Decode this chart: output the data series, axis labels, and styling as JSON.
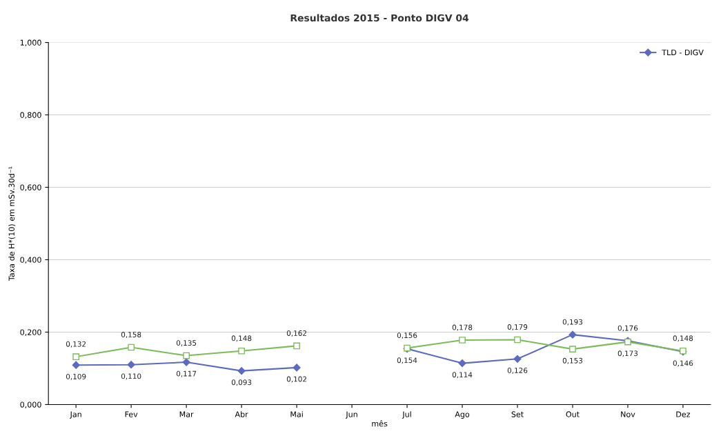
{
  "chart_data": {
    "type": "line",
    "title": "Resultados 2015 - Ponto DIGV 04",
    "xlabel": "mês",
    "ylabel": "Taxa de H*(10) em mSv.30d⁻¹",
    "categories": [
      "Jan",
      "Fev",
      "Mar",
      "Abr",
      "Mai",
      "Jun",
      "Jul",
      "Ago",
      "Set",
      "Out",
      "Nov",
      "Dez"
    ],
    "series": [
      {
        "name": "TLD - DIGV",
        "color": "#5b6cc0",
        "marker": "diamond",
        "values": [
          0.109,
          0.11,
          0.117,
          0.093,
          0.102,
          null,
          0.154,
          0.114,
          0.126,
          0.193,
          0.176,
          0.146
        ],
        "value_labels": [
          "0,109",
          "0,110",
          "0,117",
          "0,093",
          "0,102",
          null,
          "0,154",
          "0,114",
          "0,126",
          "0,193",
          "0,176",
          "0,146"
        ]
      },
      {
        "color": "#7cbc5a",
        "marker": "square",
        "values": [
          0.132,
          0.158,
          0.135,
          0.148,
          0.162,
          null,
          0.156,
          0.178,
          0.179,
          0.153,
          0.173,
          0.148
        ],
        "value_labels": [
          "0,132",
          "0,158",
          "0,135",
          "0,148",
          "0,162",
          null,
          "0,156",
          "0,178",
          "0,179",
          "0,153",
          "0,173",
          "0,148"
        ]
      }
    ],
    "ylim": [
      0,
      1
    ],
    "yticks": [
      {
        "value": 0,
        "label": "0,000"
      },
      {
        "value": 0.2,
        "label": "0,200"
      },
      {
        "value": 0.4,
        "label": "0,400"
      },
      {
        "value": 0.6,
        "label": "0,600"
      },
      {
        "value": 0.8,
        "label": "0,800"
      },
      {
        "value": 1,
        "label": "1,000"
      }
    ],
    "grid": "y",
    "legend": "top right"
  }
}
